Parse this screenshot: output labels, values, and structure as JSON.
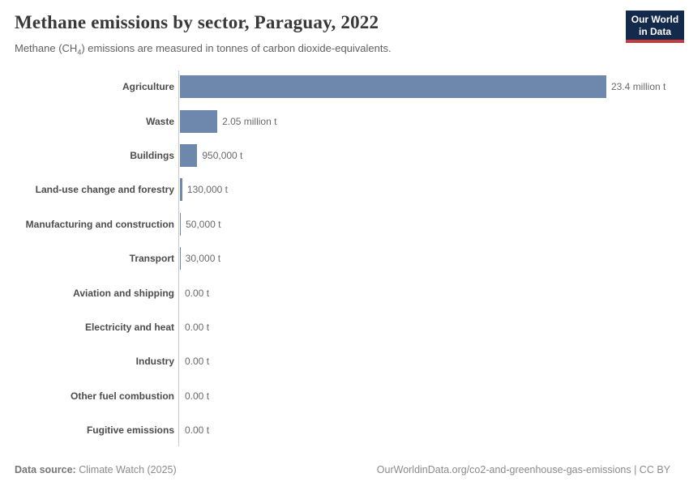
{
  "header": {
    "title": "Methane emissions by sector, Paraguay, 2022",
    "subtitle_prefix": "Methane (CH",
    "subtitle_sub": "4",
    "subtitle_suffix": ") emissions are measured in tonnes of carbon dioxide-equivalents."
  },
  "logo": {
    "line1": "Our World",
    "line2": "in Data",
    "bg_color": "#142a4d",
    "accent_color": "#c53a3c"
  },
  "footer": {
    "datasource_label": "Data source:",
    "datasource_value": "Climate Watch (2025)",
    "credit": "OurWorldinData.org/co2-and-greenhouse-gas-emissions | CC BY"
  },
  "chart_data": {
    "type": "bar",
    "orientation": "horizontal",
    "title": "Methane emissions by sector, Paraguay, 2022",
    "subtitle": "Methane (CH₄) emissions are measured in tonnes of carbon dioxide-equivalents.",
    "unit": "t",
    "grid": false,
    "legend": "none",
    "xlim": [
      0,
      23400000
    ],
    "bar_color": "#6e87ad",
    "axis_color": "#c9c9c9",
    "categories": [
      "Agriculture",
      "Waste",
      "Buildings",
      "Land-use change and forestry",
      "Manufacturing and construction",
      "Transport",
      "Aviation and shipping",
      "Electricity and heat",
      "Industry",
      "Other fuel combustion",
      "Fugitive emissions"
    ],
    "values": [
      23400000,
      2050000,
      950000,
      130000,
      50000,
      30000,
      0,
      0,
      0,
      0,
      0
    ],
    "value_labels": [
      "23.4 million t",
      "2.05 million t",
      "950,000 t",
      "130,000 t",
      "50,000 t",
      "30,000 t",
      "0.00 t",
      "0.00 t",
      "0.00 t",
      "0.00 t",
      "0.00 t"
    ]
  }
}
